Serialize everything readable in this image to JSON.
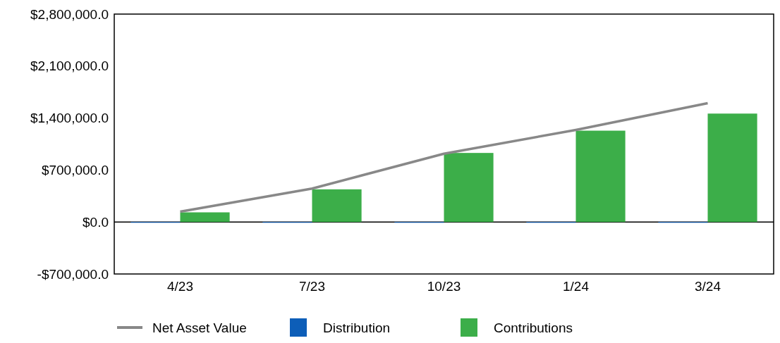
{
  "chart_data": {
    "type": "bar",
    "categories": [
      "4/23",
      "7/23",
      "10/23",
      "1/24",
      "3/24"
    ],
    "series": [
      {
        "name": "Net Asset Value",
        "type": "line",
        "color": "#888888",
        "values": [
          140000,
          450000,
          920000,
          1240000,
          1600000
        ]
      },
      {
        "name": "Distribution",
        "color": "#0d5eb8",
        "values": [
          -10000,
          -10000,
          -10000,
          -10000,
          -10000
        ]
      },
      {
        "name": "Contributions",
        "color": "#3cae49",
        "values": [
          130000,
          440000,
          930000,
          1230000,
          1460000
        ]
      }
    ],
    "ylim": [
      -700000,
      2800000
    ],
    "yticks": [
      {
        "value": -700000,
        "label": "-$700,000.0"
      },
      {
        "value": 0,
        "label": "$0.0"
      },
      {
        "value": 700000,
        "label": "$700,000.0"
      },
      {
        "value": 1400000,
        "label": "$1,400,000.0"
      },
      {
        "value": 2100000,
        "label": "$2,100,000.0"
      },
      {
        "value": 2800000,
        "label": "$2,800,000.0"
      }
    ],
    "legend": "bottom",
    "marker": "none"
  }
}
